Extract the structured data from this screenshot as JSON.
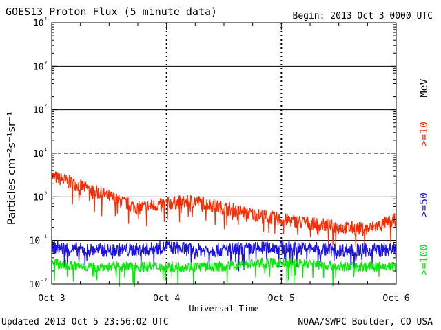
{
  "header": {
    "title": "GOES13 Proton Flux (5 minute data)",
    "begin": "Begin: 2013 Oct 3 0000 UTC"
  },
  "footer": {
    "updated": "Updated 2013 Oct  5 23:56:02 UTC",
    "credit": "NOAA/SWPC Boulder, CO USA"
  },
  "colors": {
    "ge10": "#ff2a00",
    "ge50": "#1a10e8",
    "ge100": "#00ee00",
    "frame": "#000000"
  },
  "chart_data": {
    "type": "line",
    "title": "GOES13 Proton Flux (5 minute data)",
    "xlabel": "Universal Time",
    "ylabel": "Particles cm⁻²s⁻¹sr⁻¹",
    "yscale": "log",
    "ylim": [
      0.01,
      10000
    ],
    "yticks": [
      "10⁻²",
      "10⁻¹",
      "10⁰",
      "10¹",
      "10²",
      "10³",
      "10⁴"
    ],
    "xlim": [
      "2013-10-03",
      "2013-10-06"
    ],
    "xticks": [
      "Oct 3",
      "Oct 4",
      "Oct 5",
      "Oct 6"
    ],
    "grid": true,
    "legend_position": "right (vertical)",
    "legend_unit": "MeV",
    "x": [
      "2013-10-03",
      "2013-10-03 06:00",
      "2013-10-03 12:00",
      "2013-10-03 18:00",
      "2013-10-04",
      "2013-10-04 06:00",
      "2013-10-04 12:00",
      "2013-10-04 18:00",
      "2013-10-05",
      "2013-10-05 06:00",
      "2013-10-05 12:00",
      "2013-10-05 18:00",
      "2013-10-06"
    ],
    "series": [
      {
        "name": ">=10",
        "color": "#ff2a00",
        "values": [
          3.0,
          1.8,
          1.0,
          0.55,
          0.7,
          0.8,
          0.55,
          0.4,
          0.3,
          0.25,
          0.2,
          0.18,
          0.3
        ]
      },
      {
        "name": ">=50",
        "color": "#1a10e8",
        "values": [
          0.07,
          0.06,
          0.06,
          0.06,
          0.07,
          0.06,
          0.06,
          0.065,
          0.07,
          0.065,
          0.06,
          0.06,
          0.06
        ]
      },
      {
        "name": ">=100",
        "color": "#00ee00",
        "values": [
          0.03,
          0.025,
          0.025,
          0.025,
          0.025,
          0.025,
          0.025,
          0.03,
          0.03,
          0.03,
          0.025,
          0.025,
          0.025
        ]
      }
    ]
  }
}
